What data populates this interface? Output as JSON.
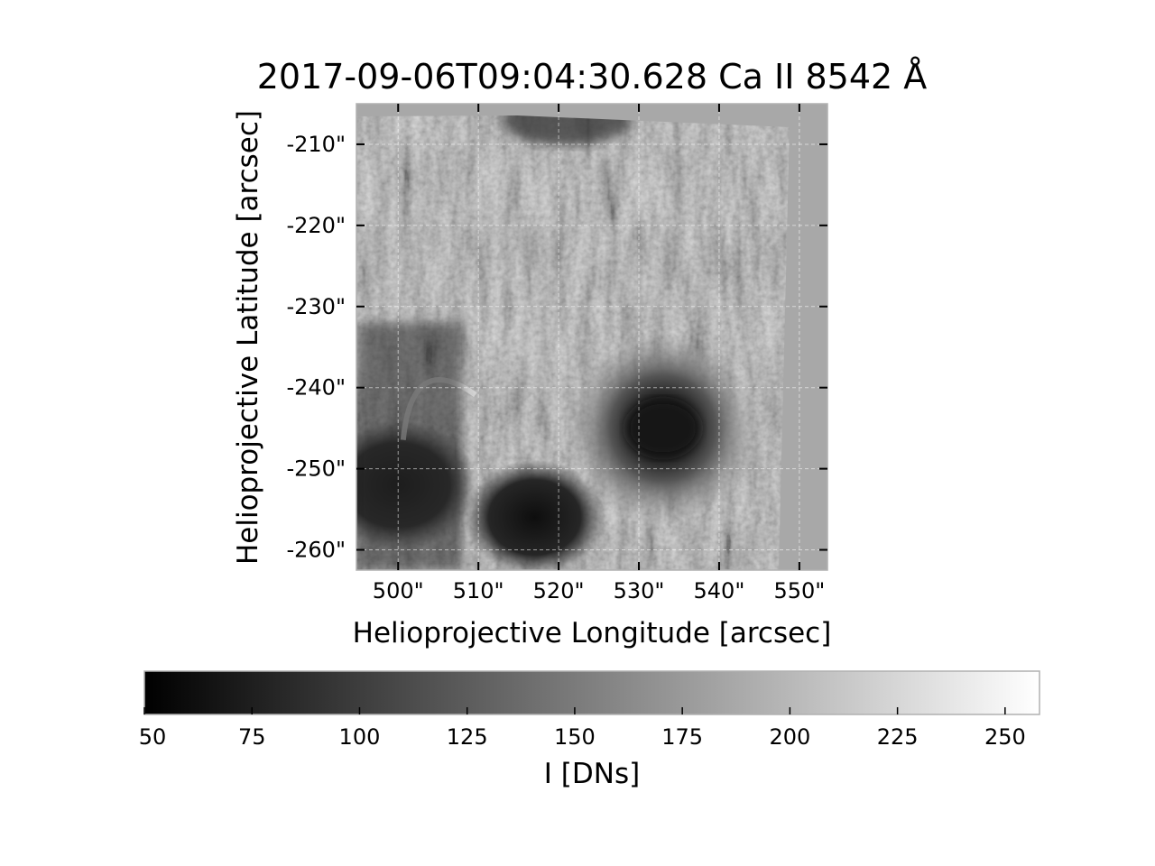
{
  "figure": {
    "title": "2017-09-06T09:04:30.628 Ca II 8542 Å"
  },
  "chart_data": {
    "type": "heatmap",
    "title": "2017-09-06T09:04:30.628 Ca II 8542 Å",
    "xlabel": "Helioprojective Longitude [arcsec]",
    "ylabel": "Helioprojective Latitude [arcsec]",
    "xlim": [
      494.8,
      553.5
    ],
    "ylim": [
      -262.5,
      -205.0
    ],
    "x_ticks": [
      500,
      510,
      520,
      530,
      540,
      550
    ],
    "x_tick_labels": [
      "500\"",
      "510\"",
      "520\"",
      "530\"",
      "540\"",
      "550\""
    ],
    "y_ticks": [
      -210,
      -220,
      -230,
      -240,
      -250,
      -260
    ],
    "y_tick_labels": [
      "-210\"",
      "-220\"",
      "-230\"",
      "-240\"",
      "-250\"",
      "-260\""
    ],
    "grid": true,
    "colormap": "gray",
    "colorbar": {
      "label": "I [DNs]",
      "orientation": "horizontal",
      "placement": "bottom",
      "range": [
        50,
        258
      ],
      "ticks": [
        50,
        75,
        100,
        125,
        150,
        175,
        200,
        225,
        250
      ],
      "tick_labels": [
        "50",
        "75",
        "100",
        "125",
        "150",
        "175",
        "200",
        "225",
        "250"
      ]
    },
    "background_intensity": 165,
    "features": [
      {
        "kind": "sunspot",
        "center": [
          533,
          -245
        ],
        "umbra_radius": 3.5,
        "penumbra_radius": 12,
        "intensity": 60
      },
      {
        "kind": "pore-cluster",
        "center": [
          500,
          -252
        ],
        "radius": 9,
        "intensity": 55
      },
      {
        "kind": "pore-cluster",
        "center": [
          517,
          -256
        ],
        "radius": 8,
        "intensity": 58
      },
      {
        "kind": "dark-region",
        "center": [
          521,
          -207
        ],
        "radius": 4,
        "intensity": 70
      },
      {
        "kind": "loop",
        "center": [
          504,
          -242
        ],
        "radius": 4,
        "intensity": 230
      }
    ]
  }
}
